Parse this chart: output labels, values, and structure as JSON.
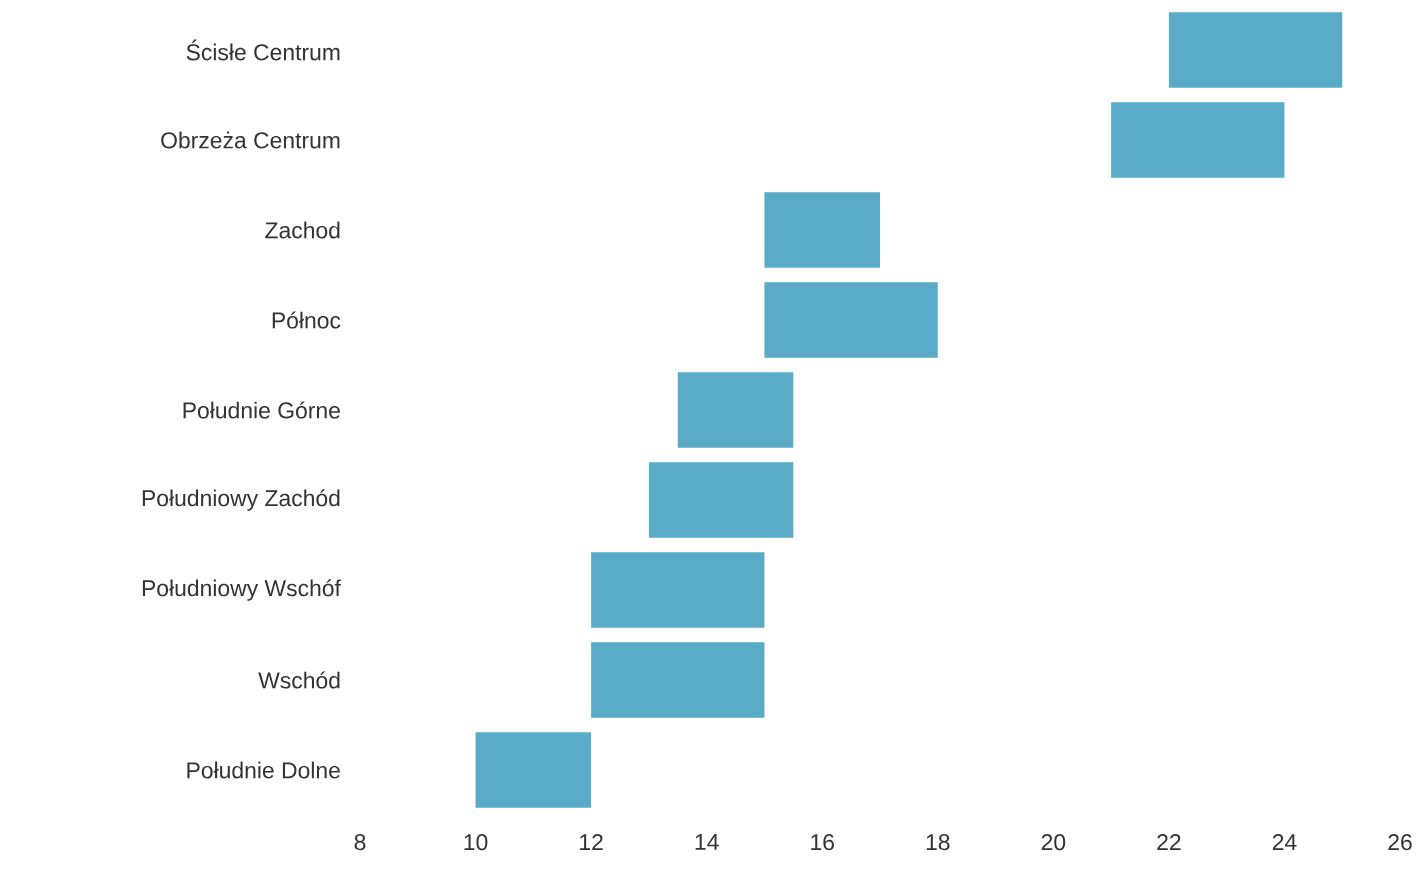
{
  "chart_data": {
    "type": "bar",
    "orientation": "horizontal",
    "categories": [
      "Ścisłe Centrum",
      "Obrzeża Centrum",
      "Zachod",
      "Północ",
      "Południe Górne",
      "Południowy Zachód",
      "Południowy Wschóf",
      "Wschód",
      "Południe Dolne"
    ],
    "base": [
      22,
      21,
      15,
      15,
      13.5,
      13,
      12,
      12,
      10
    ],
    "values": [
      3,
      3,
      2,
      3,
      2,
      2.5,
      3,
      3,
      2
    ],
    "color": "#5aabc8",
    "xlim": [
      8,
      26
    ],
    "xticks": [
      8,
      10,
      12,
      14,
      16,
      18,
      20,
      22,
      24,
      26
    ]
  }
}
